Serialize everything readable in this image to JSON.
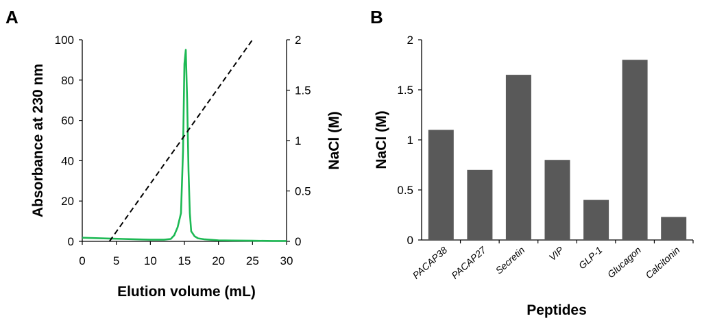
{
  "chart_data": [
    {
      "panel": "A",
      "type": "line",
      "title": "",
      "xlabel": "Elution volume (mL)",
      "ylabel": "Absorbance at 230 nm",
      "y2label": "NaCl (M)",
      "xlim": [
        0,
        30
      ],
      "ylim": [
        0,
        100
      ],
      "y2lim": [
        0,
        2
      ],
      "xticks": [
        "0",
        "5",
        "10",
        "15",
        "20",
        "25",
        "30"
      ],
      "yticks": [
        "0",
        "20",
        "40",
        "60",
        "80",
        "100"
      ],
      "y2ticks": [
        "0",
        "0.5",
        "1",
        "1.5",
        "2"
      ],
      "series": [
        {
          "name": "Absorbance at 230 nm",
          "axis": "left",
          "color": "#1db954",
          "style": "solid",
          "x": [
            0,
            2,
            4,
            6,
            8,
            10,
            12,
            13,
            13.5,
            14,
            14.5,
            14.8,
            15.0,
            15.2,
            15.4,
            15.6,
            15.8,
            16.0,
            16.5,
            17,
            18,
            20,
            22,
            25,
            28,
            30
          ],
          "y": [
            1.8,
            1.6,
            1.4,
            1.2,
            1.0,
            0.8,
            0.8,
            1.2,
            3,
            7,
            14,
            45,
            88,
            95,
            70,
            35,
            14,
            5,
            2.5,
            1.5,
            1.0,
            0.5,
            0.4,
            0.3,
            0.2,
            0.2
          ]
        },
        {
          "name": "NaCl gradient",
          "axis": "right",
          "color": "#000000",
          "style": "dashed",
          "x": [
            4.0,
            25.0
          ],
          "y": [
            0,
            2.0
          ]
        }
      ]
    },
    {
      "panel": "B",
      "type": "bar",
      "title": "",
      "xlabel": "Peptides",
      "ylabel": "NaCl (M)",
      "ylim": [
        0,
        2
      ],
      "yticks": [
        "0",
        "0.5",
        "1",
        "1.5",
        "2"
      ],
      "categories": [
        "PACAP38",
        "PACAP27",
        "Secretin",
        "VIP",
        "GLP-1",
        "Glucagon",
        "Calcitonin"
      ],
      "values": [
        1.1,
        0.7,
        1.65,
        0.8,
        0.4,
        1.8,
        0.23
      ],
      "color": "#595959"
    }
  ]
}
